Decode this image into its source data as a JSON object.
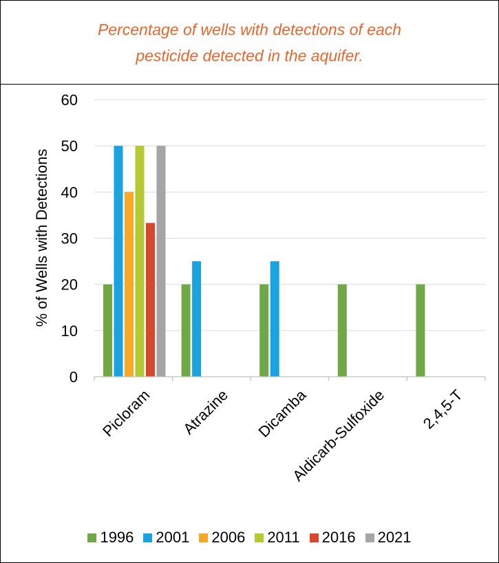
{
  "chart_data": {
    "type": "bar",
    "title": "Percentage of wells with detections of each pesticide detected in the aquifer.",
    "ylabel": "% of Wells with Detections",
    "xlabel": "",
    "ylim": [
      0,
      60
    ],
    "yticks": [
      0,
      10,
      20,
      30,
      40,
      50,
      60
    ],
    "grid": true,
    "legend_position": "bottom",
    "categories": [
      "Picloram",
      "Atrazine",
      "Dicamba",
      "Aldicarb-Sulfoxide",
      "2,4,5-T"
    ],
    "series": [
      {
        "name": "1996",
        "color": "#70a845",
        "values": [
          20,
          20,
          20,
          20,
          20
        ]
      },
      {
        "name": "2001",
        "color": "#1aa3e0",
        "values": [
          50,
          25,
          25,
          null,
          null
        ]
      },
      {
        "name": "2006",
        "color": "#f9a825",
        "values": [
          40,
          null,
          null,
          null,
          null
        ]
      },
      {
        "name": "2011",
        "color": "#b5c933",
        "values": [
          50,
          null,
          null,
          null,
          null
        ]
      },
      {
        "name": "2016",
        "color": "#d9472b",
        "values": [
          33.3,
          null,
          null,
          null,
          null
        ]
      },
      {
        "name": "2021",
        "color": "#a5a5a5",
        "values": [
          50,
          null,
          null,
          null,
          null
        ]
      }
    ]
  }
}
